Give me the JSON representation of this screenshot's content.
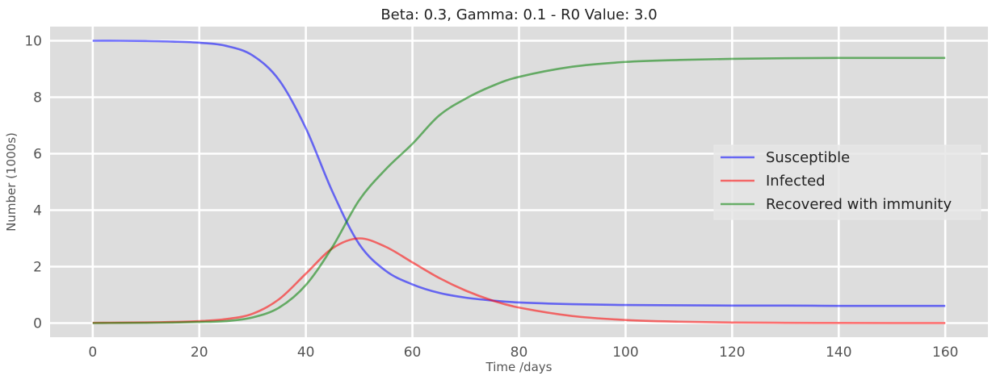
{
  "chart_data": {
    "type": "line",
    "title": "Beta: 0.3, Gamma: 0.1 - R0 Value: 3.0",
    "xlabel": "Time /days",
    "ylabel": "Number (1000s)",
    "xlim": [
      -8,
      168
    ],
    "ylim": [
      -0.5,
      10.5
    ],
    "xticks": [
      0,
      20,
      40,
      60,
      80,
      100,
      120,
      140,
      160
    ],
    "yticks": [
      0,
      2,
      4,
      6,
      8,
      10
    ],
    "grid": true,
    "legend_position": "center-right",
    "x": [
      0,
      5,
      10,
      15,
      20,
      25,
      30,
      35,
      40,
      45,
      50,
      55,
      60,
      65,
      70,
      75,
      80,
      90,
      100,
      110,
      120,
      130,
      140,
      150,
      160
    ],
    "series": [
      {
        "name": "Susceptible",
        "color": "#0000ff",
        "values": [
          10.0,
          10.0,
          9.99,
          9.97,
          9.93,
          9.82,
          9.48,
          8.6,
          6.9,
          4.65,
          2.8,
          1.85,
          1.37,
          1.07,
          0.9,
          0.8,
          0.73,
          0.67,
          0.64,
          0.63,
          0.62,
          0.62,
          0.61,
          0.61,
          0.61
        ]
      },
      {
        "name": "Infected",
        "color": "#ff0000",
        "values": [
          0.01,
          0.015,
          0.025,
          0.04,
          0.07,
          0.14,
          0.33,
          0.85,
          1.75,
          2.65,
          3.0,
          2.7,
          2.15,
          1.6,
          1.15,
          0.8,
          0.55,
          0.25,
          0.11,
          0.05,
          0.02,
          0.01,
          0.005,
          0.002,
          0.001
        ]
      },
      {
        "name": "Recovered with immunity",
        "color": "#008000",
        "values": [
          0.0,
          0.005,
          0.01,
          0.02,
          0.04,
          0.07,
          0.2,
          0.55,
          1.35,
          2.7,
          4.35,
          5.45,
          6.35,
          7.35,
          7.95,
          8.4,
          8.72,
          9.08,
          9.25,
          9.32,
          9.36,
          9.38,
          9.39,
          9.39,
          9.39
        ]
      }
    ]
  },
  "colors": {
    "plot_background": "#dddddd",
    "grid": "#ffffff",
    "line_opacity": 0.55
  }
}
